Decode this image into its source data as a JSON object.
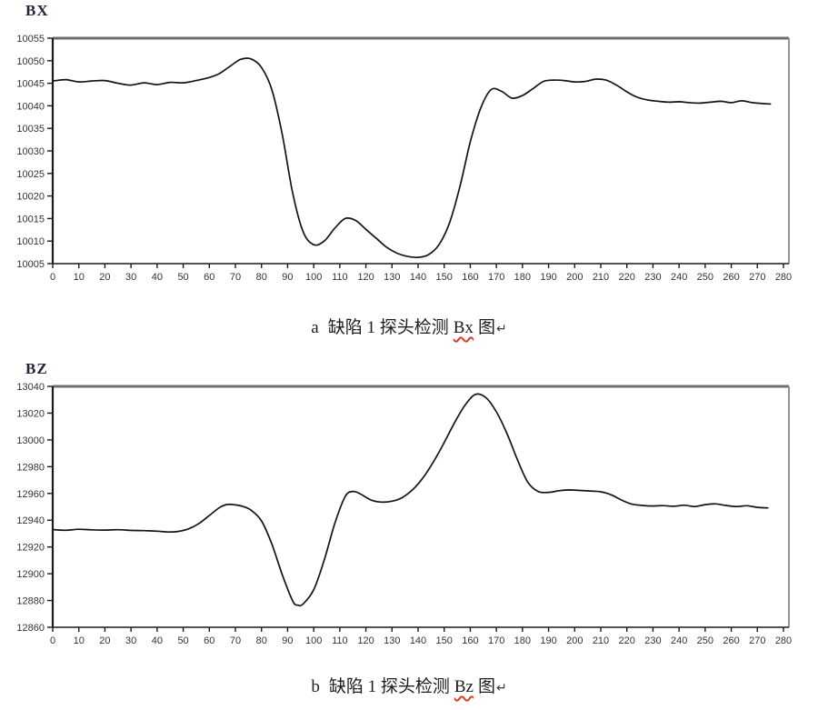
{
  "page": {
    "background": "#ffffff"
  },
  "chart_data": [
    {
      "type": "line",
      "title": "BX",
      "xlabel": "",
      "ylabel": "",
      "xlim": [
        0,
        280
      ],
      "ylim": [
        10005,
        10055
      ],
      "grid": false,
      "legend": "none",
      "xticks": [
        0,
        10,
        20,
        30,
        40,
        50,
        60,
        70,
        80,
        90,
        100,
        110,
        120,
        130,
        140,
        150,
        160,
        170,
        180,
        190,
        200,
        210,
        220,
        230,
        240,
        250,
        260,
        270,
        280
      ],
      "yticks": [
        10055,
        10050,
        10045,
        10040,
        10035,
        10030,
        10025,
        10020,
        10015,
        10010,
        10005
      ],
      "x": [
        0,
        5,
        10,
        15,
        20,
        25,
        30,
        35,
        40,
        45,
        50,
        55,
        60,
        64,
        68,
        72,
        76,
        80,
        84,
        88,
        92,
        96,
        100,
        104,
        108,
        112,
        116,
        120,
        124,
        128,
        132,
        136,
        140,
        144,
        148,
        152,
        156,
        160,
        164,
        168,
        172,
        176,
        180,
        184,
        188,
        192,
        196,
        200,
        204,
        208,
        212,
        216,
        220,
        224,
        228,
        232,
        236,
        240,
        244,
        248,
        252,
        256,
        260,
        264,
        268,
        272,
        275
      ],
      "values": [
        10045.5,
        10045.8,
        10045.3,
        10045.5,
        10045.6,
        10045.0,
        10044.6,
        10045.1,
        10044.7,
        10045.2,
        10045.1,
        10045.6,
        10046.3,
        10047.2,
        10048.8,
        10050.3,
        10050.4,
        10048.5,
        10043.5,
        10033.5,
        10020.5,
        10012.0,
        10009.2,
        10010.0,
        10012.8,
        10015.0,
        10014.6,
        10012.6,
        10010.6,
        10008.6,
        10007.3,
        10006.6,
        10006.4,
        10007.0,
        10009.2,
        10014.0,
        10022.0,
        10032.0,
        10039.5,
        10043.6,
        10043.2,
        10041.7,
        10042.3,
        10043.8,
        10045.4,
        10045.7,
        10045.6,
        10045.3,
        10045.4,
        10045.9,
        10045.7,
        10044.6,
        10043.1,
        10041.9,
        10041.3,
        10041.0,
        10040.8,
        10040.9,
        10040.7,
        10040.6,
        10040.8,
        10041.0,
        10040.7,
        10041.1,
        10040.7,
        10040.5,
        10040.4
      ],
      "line_color": "#141414",
      "axis_color": "#1a1a1a",
      "frame_color": "#8a8a8a",
      "top_border_color": "#6d6d6d",
      "tick_label_color": "#333333"
    },
    {
      "type": "line",
      "title": "BZ",
      "xlabel": "",
      "ylabel": "",
      "xlim": [
        0,
        280
      ],
      "ylim": [
        12860,
        13040
      ],
      "grid": false,
      "legend": "none",
      "xticks": [
        0,
        10,
        20,
        30,
        40,
        50,
        60,
        70,
        80,
        90,
        100,
        110,
        120,
        130,
        140,
        150,
        160,
        170,
        180,
        190,
        200,
        210,
        220,
        230,
        240,
        250,
        260,
        270,
        280
      ],
      "yticks": [
        13040,
        13020,
        13000,
        12980,
        12960,
        12940,
        12920,
        12900,
        12880,
        12860
      ],
      "x": [
        0,
        5,
        10,
        15,
        20,
        25,
        30,
        35,
        40,
        44,
        48,
        52,
        56,
        60,
        64,
        67,
        70,
        73,
        76,
        80,
        84,
        88,
        92,
        94,
        96,
        100,
        104,
        108,
        112,
        115,
        118,
        122,
        126,
        130,
        134,
        138,
        142,
        146,
        150,
        154,
        158,
        162,
        166,
        170,
        174,
        178,
        182,
        186,
        190,
        194,
        198,
        202,
        206,
        210,
        214,
        218,
        222,
        226,
        230,
        234,
        238,
        242,
        246,
        250,
        254,
        258,
        262,
        266,
        270,
        274
      ],
      "values": [
        12933,
        12932.5,
        12933.2,
        12932.8,
        12932.6,
        12932.9,
        12932.4,
        12932.2,
        12931.8,
        12931.2,
        12931.6,
        12933.5,
        12937.5,
        12943.5,
        12949.5,
        12951.8,
        12951.4,
        12950.2,
        12947.5,
        12939.5,
        12922,
        12899,
        12879.5,
        12876.5,
        12877.5,
        12888,
        12910,
        12937,
        12957.5,
        12961.5,
        12959.5,
        12955,
        12953.5,
        12954.2,
        12957,
        12963,
        12972,
        12984,
        12998,
        13013,
        13026,
        13034,
        13031.5,
        13021,
        13005,
        12985.5,
        12968.5,
        12961.5,
        12960.8,
        12962,
        12962.6,
        12962.2,
        12961.8,
        12961.2,
        12959,
        12955,
        12952,
        12951,
        12950.6,
        12950.9,
        12950.4,
        12951.2,
        12950.2,
        12951.6,
        12952.2,
        12951,
        12950.2,
        12950.8,
        12949.6,
        12949.2
      ],
      "line_color": "#141414",
      "axis_color": "#1a1a1a",
      "frame_color": "#8a8a8a",
      "top_border_color": "#6d6d6d",
      "tick_label_color": "#333333"
    }
  ],
  "captions": {
    "a": {
      "letter": "a",
      "body": "缺陷 1 探头检测",
      "term": "Bx",
      "tail": "图",
      "mark": "↵",
      "underline_color": "#e0392f"
    },
    "b": {
      "letter": "b",
      "body": "缺陷 1 探头检测",
      "term": "Bz",
      "tail": "图",
      "mark": "↵",
      "underline_color": "#e0392f"
    }
  }
}
